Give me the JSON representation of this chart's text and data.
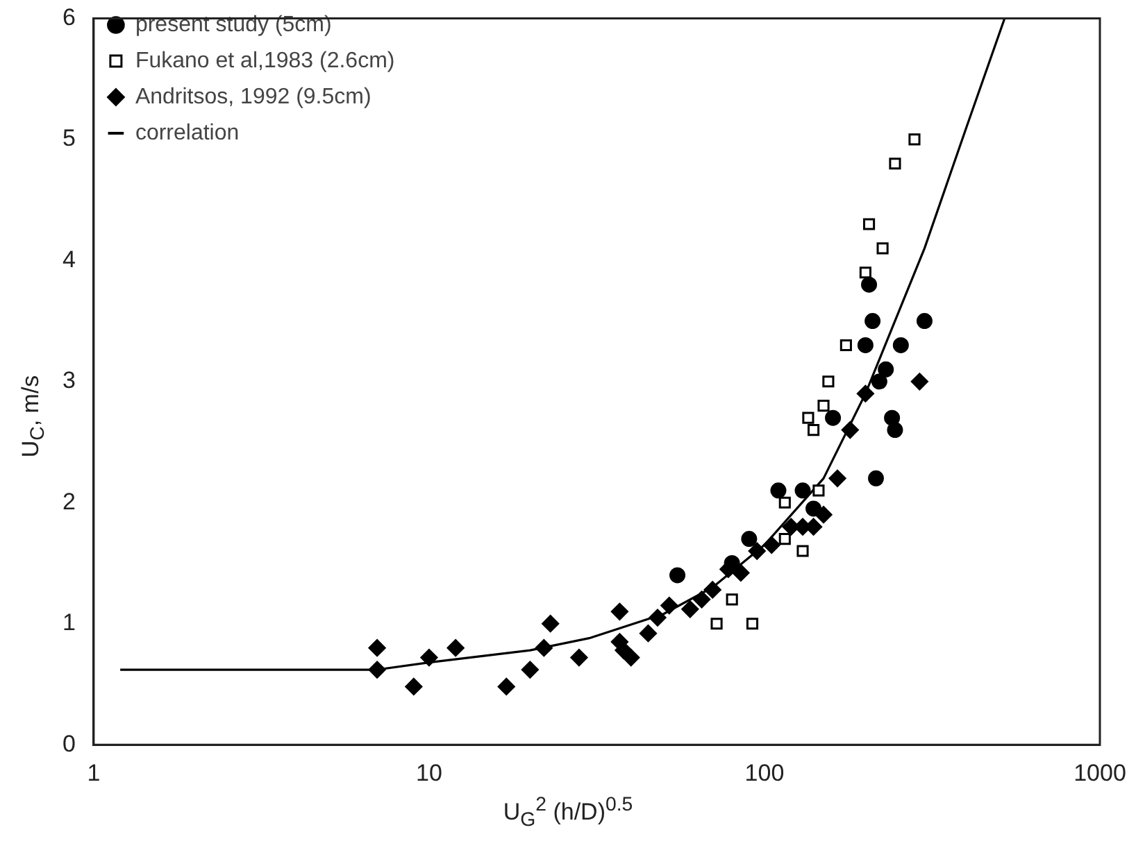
{
  "chart_data": {
    "type": "scatter",
    "xlabel": "U$_{G}$$^{2}$ (h/D)$^{0.5}$",
    "ylabel": "U$_{C}$, m/s",
    "log": "x",
    "xlim": [
      1,
      1000
    ],
    "xticks": [
      1,
      10,
      100,
      1000
    ],
    "ylim": [
      0,
      6
    ],
    "yticks": [
      0,
      1,
      2,
      3,
      4,
      5,
      6
    ],
    "grid": false,
    "legend": "top left",
    "series": [
      {
        "name": "present study (5cm)",
        "color": "#000000",
        "marker": "circle",
        "x": [
          55,
          80,
          90,
          110,
          130,
          140,
          160,
          200,
          205,
          210,
          215,
          220,
          230,
          240,
          245,
          255,
          300
        ],
        "values": [
          1.4,
          1.5,
          1.7,
          2.1,
          2.1,
          1.95,
          2.7,
          3.3,
          3.8,
          3.5,
          2.2,
          3.0,
          3.1,
          2.7,
          2.6,
          3.3,
          3.5
        ]
      },
      {
        "name": "Fukano et al,1983 (2.6cm)",
        "color": "#000000",
        "marker": "square",
        "x": [
          72,
          80,
          92,
          115,
          115,
          130,
          135,
          140,
          145,
          150,
          155,
          175,
          200,
          205,
          225,
          245,
          280
        ],
        "values": [
          1.0,
          1.2,
          1.0,
          1.7,
          2.0,
          1.6,
          2.7,
          2.6,
          2.1,
          2.8,
          3.0,
          3.3,
          3.9,
          4.3,
          4.1,
          4.8,
          5.0
        ]
      },
      {
        "name": "Andritsos, 1992 (9.5cm)",
        "color": "#000000",
        "marker": "diamond",
        "x": [
          7,
          7,
          9,
          10,
          12,
          17,
          20,
          22,
          23,
          28,
          37,
          37,
          38,
          40,
          45,
          48,
          52,
          60,
          65,
          70,
          78,
          85,
          95,
          105,
          120,
          130,
          140,
          150,
          165,
          180,
          200,
          290
        ],
        "values": [
          0.8,
          0.62,
          0.48,
          0.72,
          0.8,
          0.48,
          0.62,
          0.8,
          1.0,
          0.72,
          1.1,
          0.85,
          0.78,
          0.72,
          0.92,
          1.05,
          1.15,
          1.12,
          1.2,
          1.28,
          1.45,
          1.42,
          1.6,
          1.65,
          1.8,
          1.8,
          1.8,
          1.9,
          2.2,
          2.6,
          2.9,
          3.0
        ]
      },
      {
        "name": "correlation",
        "type": "line",
        "color": "#000000",
        "marker": "none",
        "line_style": "solid",
        "x": [
          1.2,
          7,
          10,
          20,
          30,
          50,
          70,
          100,
          150,
          200,
          300,
          400,
          520
        ],
        "values": [
          0.62,
          0.62,
          0.68,
          0.78,
          0.88,
          1.08,
          1.3,
          1.65,
          2.2,
          2.9,
          4.1,
          5.1,
          6.0
        ]
      }
    ]
  }
}
